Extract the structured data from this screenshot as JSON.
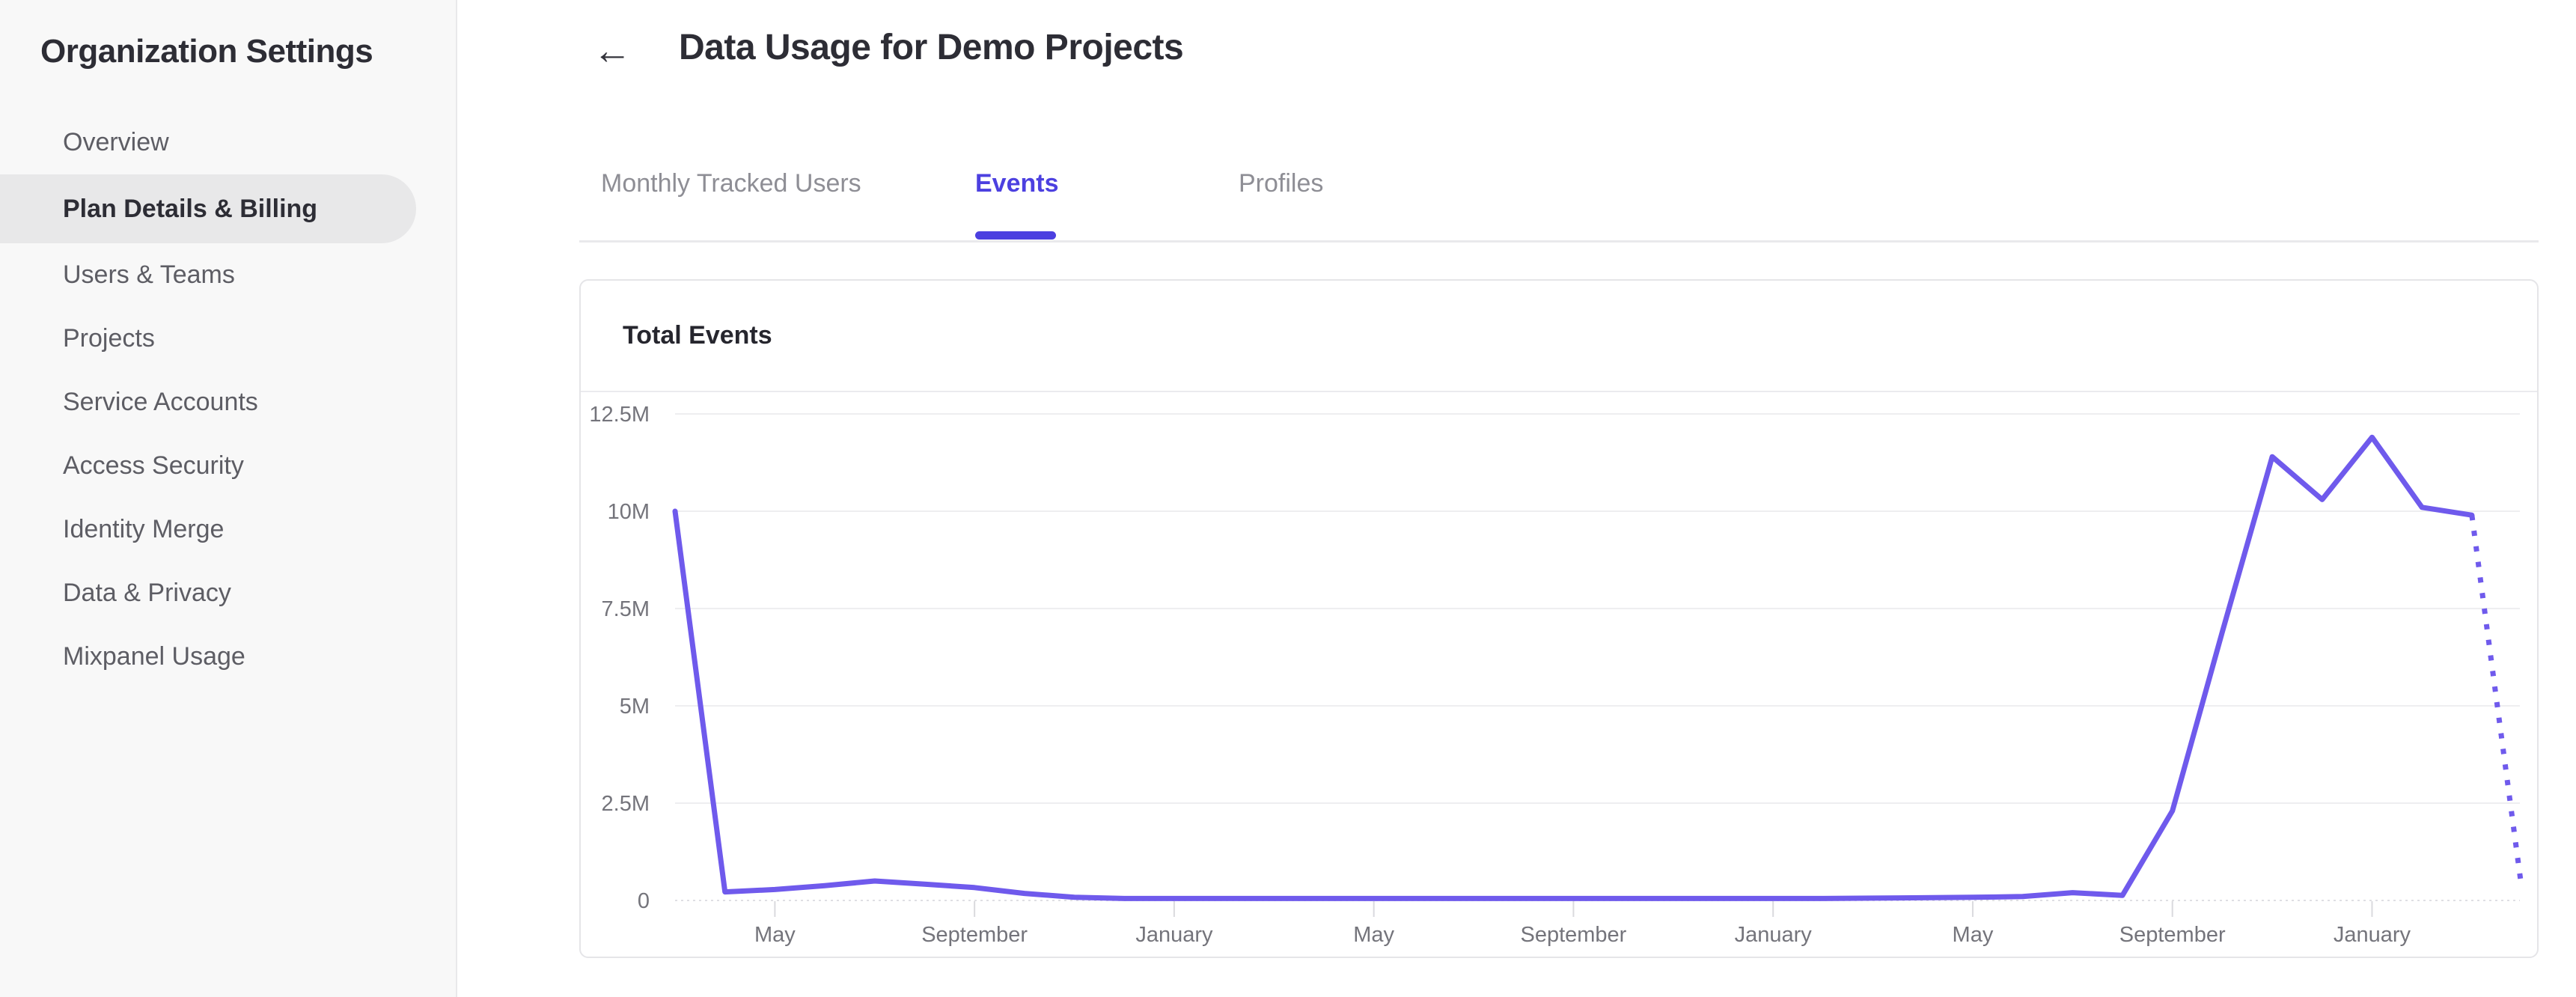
{
  "sidebar": {
    "title": "Organization Settings",
    "items": [
      {
        "label": "Overview",
        "selected": false
      },
      {
        "label": "Plan Details & Billing",
        "selected": true
      },
      {
        "label": "Users & Teams",
        "selected": false
      },
      {
        "label": "Projects",
        "selected": false
      },
      {
        "label": "Service Accounts",
        "selected": false
      },
      {
        "label": "Access Security",
        "selected": false
      },
      {
        "label": "Identity Merge",
        "selected": false
      },
      {
        "label": "Data & Privacy",
        "selected": false
      },
      {
        "label": "Mixpanel Usage",
        "selected": false
      }
    ]
  },
  "header": {
    "back_icon": "←",
    "title": "Data Usage for Demo Projects"
  },
  "tabs": [
    {
      "label": "Monthly Tracked Users",
      "active": false
    },
    {
      "label": "Events",
      "active": true
    },
    {
      "label": "Profiles",
      "active": false
    }
  ],
  "card": {
    "title": "Total Events"
  },
  "colors": {
    "accent": "#4c40e0",
    "chart_line": "#6f5aec",
    "gridline": "#eeeef0",
    "zero_line": "#dfdfe3",
    "axis_text": "#74747b",
    "sidebar_bg": "#f8f8f8",
    "selected_pill": "#e8e8e9"
  },
  "chart_data": {
    "type": "line",
    "title": "Total Events",
    "xlabel": "",
    "ylabel": "",
    "ylim": [
      0,
      12500000
    ],
    "grid": "horizontal",
    "legend": "none",
    "y_tick_labels": [
      "12.5M",
      "10M",
      "7.5M",
      "5M",
      "2.5M",
      "0"
    ],
    "y_tick_values": [
      12500000,
      10000000,
      7500000,
      5000000,
      2500000,
      0
    ],
    "x_tick_labels": [
      "May",
      "September",
      "January",
      "May",
      "September",
      "January",
      "May",
      "September",
      "January"
    ],
    "x_tick_month_indices": [
      2,
      6,
      10,
      14,
      18,
      22,
      26,
      30,
      34
    ],
    "months_span": 37,
    "series": [
      {
        "name": "Total Events",
        "values": [
          10000000,
          220000,
          280000,
          380000,
          500000,
          420000,
          330000,
          180000,
          80000,
          50000,
          50000,
          50000,
          50000,
          50000,
          50000,
          50000,
          50000,
          50000,
          50000,
          50000,
          50000,
          50000,
          50000,
          50000,
          60000,
          70000,
          80000,
          100000,
          200000,
          130000,
          2300000,
          6900000,
          11400000,
          10300000,
          11900000,
          10100000,
          9900000,
          300000
        ],
        "last_segment_style": "dotted"
      }
    ]
  }
}
